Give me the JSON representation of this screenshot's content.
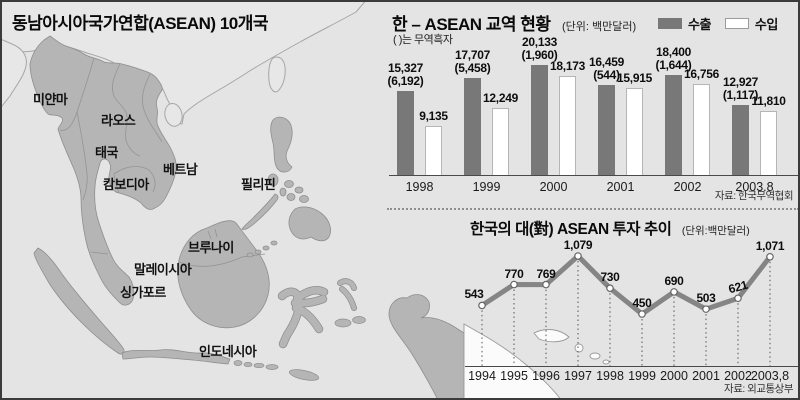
{
  "map": {
    "title": "동남아시아국가연합(ASEAN) 10개국",
    "country_labels": [
      "미얀마",
      "라오스",
      "태국",
      "베트남",
      "캄보디아",
      "필리핀",
      "브루나이",
      "말레이시아",
      "싱가포르",
      "인도네시아"
    ]
  },
  "trade_chart": {
    "title": "한 – ASEAN 교역 현황",
    "unit": "(단위: 백만달러)",
    "note": "( )는 무역흑자",
    "legend_export": "수출",
    "legend_import": "수입",
    "source": "자료: 한국무역협회"
  },
  "invest_chart": {
    "title": "한국의 대(對) ASEAN 투자 추이",
    "unit": "(단위:백만달러)",
    "source": "자료: 외교통상부"
  },
  "chart_data": [
    {
      "type": "bar",
      "title": "한 – ASEAN 교역 현황",
      "unit": "백만달러",
      "note": "( )는 무역흑자",
      "categories": [
        "1998",
        "1999",
        "2000",
        "2001",
        "2002",
        "2003.8"
      ],
      "series": [
        {
          "name": "수출",
          "values": [
            15327,
            17707,
            20133,
            16459,
            18400,
            12927
          ],
          "value_labels": [
            "15,327",
            "17,707",
            "20,133",
            "16,459",
            "18,400",
            "12,927"
          ],
          "surplus_labels": [
            "(6,192)",
            "(5,458)",
            "(1,960)",
            "(544)",
            "(1,644)",
            "(1,117)"
          ]
        },
        {
          "name": "수입",
          "values": [
            9135,
            12249,
            18173,
            15915,
            16756,
            11810
          ],
          "value_labels": [
            "9,135",
            "12,249",
            "18,173",
            "15,915",
            "16,756",
            "11,810"
          ]
        }
      ],
      "ylim": [
        0,
        21000
      ],
      "legend_position": "top-right",
      "colors": {
        "export": "#787878",
        "import": "#ffffff"
      },
      "source": "자료: 한국무역협회"
    },
    {
      "type": "line",
      "title": "한국의 대(對) ASEAN 투자 추이",
      "unit": "백만달러",
      "x": [
        "1994",
        "1995",
        "1996",
        "1997",
        "1998",
        "1999",
        "2000",
        "2001",
        "2002",
        "2003,8"
      ],
      "values": [
        543,
        770,
        769,
        1079,
        730,
        450,
        690,
        503,
        621,
        1071
      ],
      "value_labels": [
        "543",
        "770",
        "769",
        "1,079",
        "730",
        "450",
        "690",
        "503",
        "621",
        "1,071"
      ],
      "ylim": [
        0,
        1200
      ],
      "line_color": "#858585",
      "source": "자료: 외교통상부"
    }
  ]
}
